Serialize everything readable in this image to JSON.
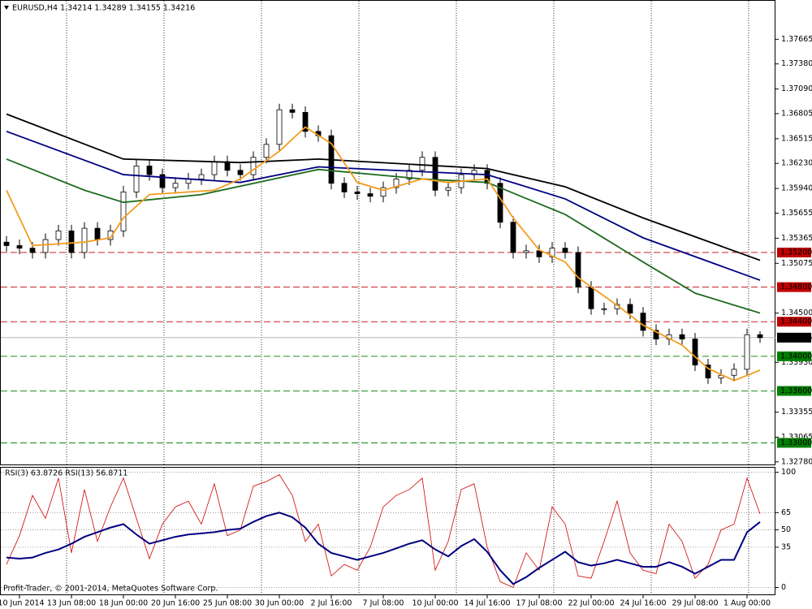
{
  "chart_data": [
    {
      "type": "candlestick",
      "title": "EURUSD,H4  1.34214 1.34289 1.34155 1.34216",
      "footer": "Profit-Trader, © 2001-2014, MetaQuotes Software Corp.",
      "ylim": [
        1.3275,
        1.381
      ],
      "yticks": [
        1.37665,
        {
          "value": 1.3738,
          "label": "1.37380"
        },
        {
          "value": 1.3709,
          "label": "1.37090"
        },
        1.36805,
        1.36515,
        {
          "value": 1.3623,
          "label": "1.36230"
        },
        {
          "value": 1.3594,
          "label": "1.35940"
        },
        1.35655,
        1.35365,
        1.35075,
        {
          "value": 1.345,
          "label": "1.34500"
        },
        {
          "value": 1.3393,
          "label": "1.33930"
        },
        1.33355,
        1.33065,
        {
          "value": 1.3278,
          "label": "1.32780"
        }
      ],
      "up_color": "#ffffff",
      "down_color": "#000000",
      "outline_color": "#000000",
      "open": [
        1.3532,
        1.3528,
        1.3525,
        1.352,
        1.3535,
        1.3545,
        1.352,
        1.3548,
        1.3535,
        1.3545,
        1.359,
        1.362,
        1.361,
        1.3595,
        1.36,
        1.3605,
        1.361,
        1.3625,
        1.3615,
        1.361,
        1.363,
        1.3645,
        1.3685,
        1.3682,
        1.366,
        1.3655,
        1.36,
        1.359,
        1.3588,
        1.3585,
        1.3595,
        1.3605,
        1.3615,
        1.363,
        1.3592,
        1.3595,
        1.361,
        1.3615,
        1.36,
        1.3555,
        1.352,
        1.3522,
        1.3515,
        1.3525,
        1.352,
        1.348,
        1.3455,
        1.3455,
        1.346,
        1.345,
        1.343,
        1.342,
        1.3425,
        1.342,
        1.339,
        1.3375,
        1.3378,
        1.3385,
        1.3425
      ],
      "high": [
        1.3539,
        1.3535,
        1.3532,
        1.3542,
        1.3552,
        1.3552,
        1.3555,
        1.3555,
        1.3552,
        1.3597,
        1.3627,
        1.3627,
        1.3617,
        1.3607,
        1.3612,
        1.3617,
        1.3632,
        1.3632,
        1.3622,
        1.3637,
        1.3652,
        1.3692,
        1.3692,
        1.3689,
        1.3667,
        1.3662,
        1.3607,
        1.3597,
        1.3595,
        1.3602,
        1.3612,
        1.3622,
        1.3637,
        1.3637,
        1.3602,
        1.3617,
        1.3622,
        1.3622,
        1.3607,
        1.3562,
        1.3529,
        1.3529,
        1.3532,
        1.3532,
        1.3527,
        1.3487,
        1.3462,
        1.3467,
        1.3467,
        1.3457,
        1.3437,
        1.3432,
        1.3432,
        1.3427,
        1.3397,
        1.3385,
        1.3392,
        1.3432,
        1.34289
      ],
      "low": [
        1.3521,
        1.3518,
        1.3513,
        1.3513,
        1.3528,
        1.3513,
        1.3513,
        1.3528,
        1.3528,
        1.3538,
        1.3583,
        1.3603,
        1.3588,
        1.3588,
        1.3593,
        1.3598,
        1.3603,
        1.3608,
        1.3603,
        1.3603,
        1.3623,
        1.3638,
        1.3675,
        1.3653,
        1.3648,
        1.3593,
        1.3583,
        1.3581,
        1.3578,
        1.3578,
        1.3588,
        1.3598,
        1.3608,
        1.3585,
        1.3585,
        1.3588,
        1.3603,
        1.3593,
        1.3548,
        1.3513,
        1.3513,
        1.3508,
        1.3508,
        1.3513,
        1.3473,
        1.3448,
        1.3448,
        1.3448,
        1.3443,
        1.3423,
        1.3413,
        1.3413,
        1.3413,
        1.3383,
        1.3368,
        1.3368,
        1.3371,
        1.3378,
        1.34155
      ],
      "close": [
        1.3528,
        1.3525,
        1.352,
        1.3535,
        1.3545,
        1.352,
        1.3548,
        1.3535,
        1.3545,
        1.359,
        1.362,
        1.361,
        1.3595,
        1.36,
        1.3605,
        1.361,
        1.3625,
        1.3615,
        1.361,
        1.363,
        1.3645,
        1.3685,
        1.3682,
        1.366,
        1.3655,
        1.36,
        1.359,
        1.3588,
        1.3585,
        1.3595,
        1.3605,
        1.3615,
        1.363,
        1.3592,
        1.3595,
        1.361,
        1.3615,
        1.36,
        1.3555,
        1.352,
        1.3522,
        1.3515,
        1.3525,
        1.352,
        1.348,
        1.3455,
        1.3455,
        1.346,
        1.345,
        1.343,
        1.342,
        1.3425,
        1.342,
        1.339,
        1.3375,
        1.3378,
        1.3385,
        1.3425,
        1.34216
      ],
      "series": [
        {
          "color": "#000000",
          "x": [
            0,
            9,
            18,
            24,
            37,
            43,
            49,
            58
          ],
          "values": [
            1.368,
            1.3628,
            1.3624,
            1.3628,
            1.3617,
            1.3596,
            1.356,
            1.3511
          ]
        },
        {
          "color": "#000080",
          "x": [
            0,
            9,
            18,
            24,
            37,
            43,
            49,
            58
          ],
          "values": [
            1.366,
            1.361,
            1.3601,
            1.3619,
            1.361,
            1.3582,
            1.3537,
            1.3488
          ]
        },
        {
          "color": "#1e6b1e",
          "x": [
            0,
            6,
            9,
            15,
            24,
            32,
            37,
            43,
            49,
            53,
            58
          ],
          "values": [
            1.3628,
            1.3592,
            1.3578,
            1.3587,
            1.3616,
            1.3605,
            1.3601,
            1.3564,
            1.3509,
            1.3473,
            1.345
          ]
        },
        {
          "color": "#f39c1f",
          "x": [
            0,
            2,
            6,
            8,
            9,
            11,
            16,
            18,
            21,
            23,
            25,
            27,
            29,
            32,
            34,
            37,
            39,
            41,
            43,
            44,
            47,
            49,
            52,
            54,
            56,
            58
          ],
          "values": [
            1.3592,
            1.3528,
            1.3532,
            1.3537,
            1.356,
            1.3587,
            1.3592,
            1.3605,
            1.3637,
            1.3665,
            1.3646,
            1.3601,
            1.3592,
            1.3605,
            1.3601,
            1.3605,
            1.356,
            1.3523,
            1.3509,
            1.3491,
            1.3459,
            1.3436,
            1.3413,
            1.3386,
            1.3372,
            1.3384
          ]
        }
      ],
      "levels": [
        {
          "value": 1.352,
          "label": "1.35200",
          "color": "#c00000"
        },
        {
          "value": 1.348,
          "label": "1.34800",
          "color": "#c00000"
        },
        {
          "value": 1.344,
          "label": "1.34400",
          "color": "#c00000"
        },
        {
          "value": 1.34,
          "label": "1.34000",
          "color": "#008000"
        },
        {
          "value": 1.336,
          "label": "1.33600",
          "color": "#008000"
        },
        {
          "value": 1.33,
          "label": "1.33000",
          "color": "#008000"
        }
      ],
      "last": {
        "value": 1.34216,
        "label": "1.34216"
      }
    },
    {
      "type": "line",
      "title": "RSI(3) 63.8726  RSI(13) 56.8711",
      "ylim": [
        -6,
        104
      ],
      "yticks": [
        100,
        65,
        50,
        35,
        0
      ],
      "categories": [
        null,
        "10 Jun 2014",
        null,
        null,
        null,
        "13 Jun 08:00",
        null,
        null,
        null,
        "18 Jun 00:00",
        null,
        null,
        null,
        "20 Jun 16:00",
        null,
        null,
        null,
        "25 Jun 08:00",
        null,
        null,
        null,
        "30 Jun 00:00",
        null,
        null,
        null,
        "2 Jul 16:00",
        null,
        null,
        null,
        "7 Jul 08:00",
        null,
        null,
        null,
        "10 Jul 00:00",
        null,
        null,
        null,
        "14 Jul 16:00",
        null,
        null,
        null,
        "17 Jul 08:00",
        null,
        null,
        null,
        "22 Jul 00:00",
        null,
        null,
        null,
        "24 Jul 16:00",
        null,
        null,
        null,
        "29 Jul 08:00",
        null,
        null,
        null,
        "1 Aug 00:00",
        null
      ],
      "series": [
        {
          "color": "#d00000",
          "width": 0.8,
          "values": [
            20,
            45,
            80,
            60,
            95,
            30,
            85,
            40,
            70,
            95,
            60,
            25,
            55,
            70,
            75,
            55,
            90,
            45,
            50,
            88,
            92,
            98,
            80,
            40,
            55,
            10,
            20,
            15,
            35,
            70,
            80,
            85,
            95,
            15,
            40,
            85,
            90,
            35,
            5,
            0,
            30,
            15,
            70,
            55,
            10,
            8,
            40,
            75,
            30,
            15,
            12,
            55,
            40,
            8,
            20,
            50,
            55,
            95,
            63.8726
          ]
        },
        {
          "color": "#000080",
          "width": 2,
          "values": [
            26,
            25,
            26,
            30,
            33,
            38,
            44,
            48,
            52,
            55,
            46,
            38,
            41,
            44,
            46,
            47,
            48,
            50,
            51,
            57,
            62,
            65,
            61,
            52,
            38,
            30,
            27,
            24,
            27,
            30,
            34,
            38,
            41,
            33,
            27,
            36,
            42,
            31,
            15,
            3,
            9,
            17,
            24,
            31,
            22,
            19,
            21,
            24,
            21,
            18,
            18,
            22,
            18,
            12,
            18,
            24,
            24,
            48,
            56.8711
          ]
        }
      ]
    }
  ]
}
